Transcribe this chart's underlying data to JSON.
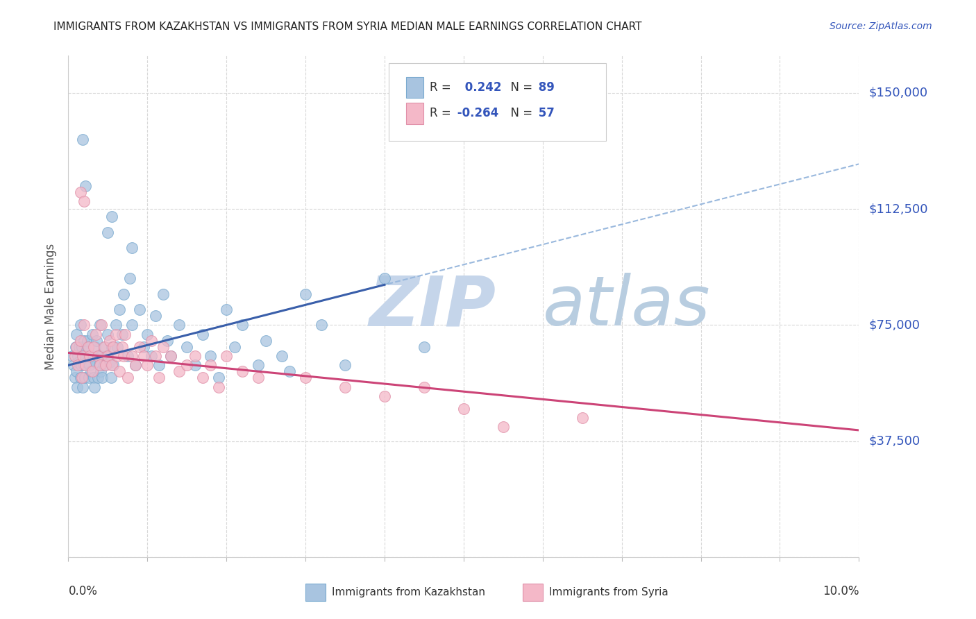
{
  "title": "IMMIGRANTS FROM KAZAKHSTAN VS IMMIGRANTS FROM SYRIA MEDIAN MALE EARNINGS CORRELATION CHART",
  "source": "Source: ZipAtlas.com",
  "ylabel": "Median Male Earnings",
  "yticks": [
    0,
    37500,
    75000,
    112500,
    150000
  ],
  "ytick_labels": [
    "",
    "$37,500",
    "$75,000",
    "$112,500",
    "$150,000"
  ],
  "xlim": [
    0.0,
    10.0
  ],
  "ylim": [
    0,
    162000
  ],
  "kaz_R": 0.242,
  "kaz_N": 89,
  "syr_R": -0.264,
  "syr_N": 57,
  "kaz_color": "#a8c4e0",
  "kaz_edge": "#7aaacf",
  "syr_color": "#f4b8c8",
  "syr_edge": "#e090a8",
  "kaz_line_color": "#3a5faa",
  "syr_line_color": "#cc4477",
  "dash_line_color": "#99b8dd",
  "background_color": "#ffffff",
  "grid_color": "#d8d8d8",
  "title_color": "#222222",
  "source_color": "#3355bb",
  "ytick_color": "#3355bb",
  "watermark_zip": "ZIP",
  "watermark_atlas": "atlas",
  "watermark_color_zip": "#c5d5ea",
  "watermark_color_atlas": "#b8cde0",
  "kaz_line_intercept": 62000,
  "kaz_line_slope": 6500,
  "syr_line_intercept": 66000,
  "syr_line_slope": -2500,
  "kaz_solid_xmax": 4.0,
  "syr_solid_xmax": 10.0
}
